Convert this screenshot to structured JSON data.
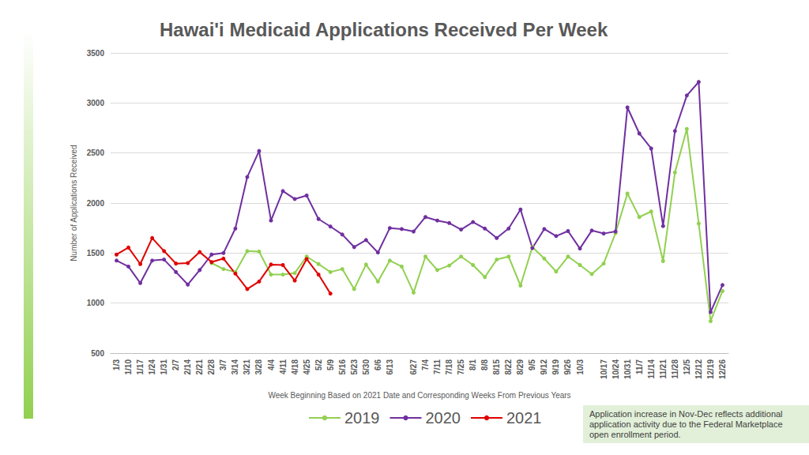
{
  "chart_data": {
    "type": "line",
    "title": "Hawai'i Medicaid Applications Received Per Week",
    "x_label": "Week Beginning Based on 2021 Date and Corresponding Weeks From Previous Years",
    "y_label": "Number of Applications Received",
    "annotation": "Application increase in Nov-Dec reflects additional application activity due to the Federal Marketplace open enrollment period.",
    "categories": [
      "1/3",
      "1/10",
      "1/17",
      "1/24",
      "1/31",
      "2/7",
      "2/14",
      "2/21",
      "2/28",
      "3/7",
      "3/14",
      "3/21",
      "3/28",
      "4/4",
      "4/11",
      "4/18",
      "4/25",
      "5/2",
      "5/9",
      "5/16",
      "5/23",
      "5/30",
      "6/6",
      "6/13",
      null,
      "6/27",
      "7/4",
      "7/11",
      "7/18",
      "7/25",
      "8/1",
      "8/8",
      "8/15",
      "8/22",
      "8/29",
      "9/5",
      "9/12",
      "9/19",
      "9/26",
      "10/3",
      null,
      "10/17",
      "10/24",
      "10/31",
      "11/7",
      "11/14",
      "11/21",
      "11/28",
      "12/5",
      "12/12",
      "12/19",
      "12/26"
    ],
    "series": [
      {
        "name": "2019",
        "color": "#92d050",
        "values": [
          null,
          null,
          null,
          null,
          null,
          null,
          null,
          null,
          1400,
          1340,
          1310,
          1520,
          1515,
          1285,
          1285,
          1300,
          1465,
          1390,
          1310,
          1340,
          1140,
          1385,
          1215,
          1425,
          1365,
          1105,
          1465,
          1330,
          1375,
          1465,
          1380,
          1260,
          1435,
          1465,
          1175,
          1560,
          1445,
          1315,
          1465,
          1380,
          1290,
          1395,
          1700,
          2095,
          1860,
          1915,
          1420,
          2305,
          2740,
          1795,
          820,
          1120
        ]
      },
      {
        "name": "2020",
        "color": "#7030a0",
        "values": [
          1425,
          1365,
          1200,
          1425,
          1435,
          1310,
          1185,
          1330,
          1485,
          1500,
          1745,
          2260,
          2520,
          1825,
          2120,
          2040,
          2075,
          1840,
          1765,
          1685,
          1560,
          1630,
          1505,
          1750,
          1740,
          1715,
          1860,
          1825,
          1800,
          1735,
          1810,
          1745,
          1650,
          1745,
          1935,
          1550,
          1740,
          1670,
          1720,
          1545,
          1725,
          1695,
          1715,
          2955,
          2695,
          2545,
          1770,
          2720,
          3075,
          3210,
          910,
          1180
        ]
      },
      {
        "name": "2021",
        "color": "#e00000",
        "values": [
          1485,
          1555,
          1390,
          1650,
          1520,
          1395,
          1400,
          1510,
          1410,
          1445,
          1295,
          1140,
          1215,
          1385,
          1380,
          1225,
          1440,
          1285,
          1095,
          null,
          null,
          null,
          null,
          null,
          null,
          null,
          null,
          null,
          null,
          null,
          null,
          null,
          null,
          null,
          null,
          null,
          null,
          null,
          null,
          null,
          null,
          null,
          null,
          null,
          null,
          null,
          null,
          null,
          null,
          null,
          null,
          null
        ]
      }
    ],
    "ylim": [
      500,
      3500
    ],
    "yticks": [
      500,
      1000,
      1500,
      2000,
      2500,
      3000,
      3500
    ],
    "grid": true,
    "legend": "bottom",
    "marker": "circle",
    "line_style": "solid"
  }
}
